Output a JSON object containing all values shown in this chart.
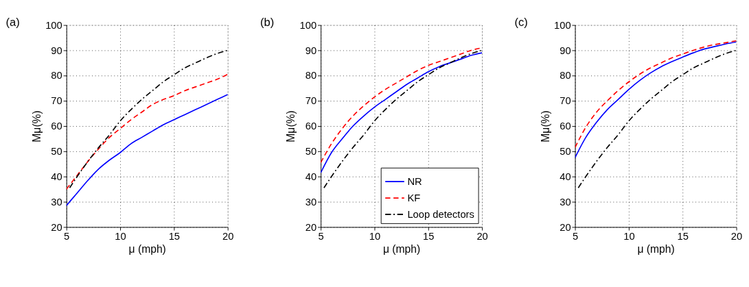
{
  "chart_data": [
    {
      "type": "line",
      "title": "(a)",
      "xlabel": "μ (mph)",
      "ylabel": "Mμ(%)",
      "xlim": [
        5,
        20
      ],
      "xticks": [
        5,
        10,
        15,
        20
      ],
      "ylim": [
        20,
        100
      ],
      "yticks": [
        20,
        30,
        40,
        50,
        60,
        70,
        80,
        90,
        100
      ],
      "grid": true,
      "series": [
        {
          "color": "#0000ff",
          "line_style": "solid",
          "x": [
            5,
            6,
            7,
            8,
            9,
            10,
            11,
            12,
            13,
            14,
            15,
            16,
            17,
            18,
            19,
            20
          ],
          "values": [
            28.5,
            33.5,
            38.5,
            43,
            46.5,
            49.5,
            53,
            55.5,
            58,
            60.5,
            62.5,
            64.5,
            66.5,
            68.5,
            70.5,
            72.5
          ]
        },
        {
          "color": "#ff0000",
          "line_style": "dashed",
          "x": [
            5,
            6,
            7,
            8,
            9,
            10,
            11,
            12,
            13,
            14,
            15,
            16,
            17,
            18,
            19,
            20
          ],
          "values": [
            35,
            40.5,
            46,
            51,
            55.5,
            59,
            62.5,
            65.5,
            68.5,
            70.5,
            72,
            74,
            75.5,
            77,
            78.5,
            80.5
          ]
        },
        {
          "color": "#000000",
          "line_style": "dashdot",
          "x": [
            5.3,
            6,
            7,
            8,
            9,
            10,
            11,
            12,
            13,
            14,
            15,
            16,
            17,
            18,
            19,
            20
          ],
          "values": [
            35.5,
            40,
            46,
            51.5,
            56.5,
            62,
            66.5,
            70.5,
            74,
            77.5,
            80.3,
            83,
            85,
            87,
            88.7,
            90
          ]
        }
      ]
    },
    {
      "type": "line",
      "title": "(b)",
      "xlabel": "μ (mph)",
      "ylabel": "Mμ(%)",
      "xlim": [
        5,
        20
      ],
      "xticks": [
        5,
        10,
        15,
        20
      ],
      "ylim": [
        20,
        100
      ],
      "yticks": [
        20,
        30,
        40,
        50,
        60,
        70,
        80,
        90,
        100
      ],
      "grid": true,
      "legend": "bottom right",
      "series": [
        {
          "name": "NR",
          "color": "#0000ff",
          "line_style": "solid",
          "x": [
            5,
            6,
            7,
            8,
            9,
            10,
            11,
            12,
            13,
            14,
            15,
            16,
            17,
            18,
            19,
            20
          ],
          "values": [
            41.5,
            49.5,
            55,
            60,
            64,
            67.5,
            70.5,
            73.5,
            76.5,
            79,
            81.5,
            83.5,
            85,
            86.5,
            88,
            89
          ]
        },
        {
          "name": "KF",
          "color": "#ff0000",
          "line_style": "dashed",
          "x": [
            5,
            6,
            7,
            8,
            9,
            10,
            11,
            12,
            13,
            14,
            15,
            16,
            17,
            18,
            19,
            20
          ],
          "values": [
            45.5,
            53,
            59,
            64,
            68,
            71.5,
            74.5,
            77,
            79.5,
            82,
            84,
            85.5,
            87,
            88.5,
            90,
            91
          ]
        },
        {
          "name": "Loop detectors",
          "color": "#000000",
          "line_style": "dashdot",
          "x": [
            5.3,
            6,
            7,
            8,
            9,
            10,
            11,
            12,
            13,
            14,
            15,
            16,
            17,
            18,
            19,
            20
          ],
          "values": [
            35.5,
            40,
            46,
            51.5,
            56.5,
            62,
            66.5,
            70.5,
            74,
            77.5,
            80.3,
            83,
            85,
            87,
            88.7,
            90
          ]
        }
      ]
    },
    {
      "type": "line",
      "title": "(c)",
      "xlabel": "μ (mph)",
      "ylabel": "Mμ(%)",
      "xlim": [
        5,
        20
      ],
      "xticks": [
        5,
        10,
        15,
        20
      ],
      "ylim": [
        20,
        100
      ],
      "yticks": [
        20,
        30,
        40,
        50,
        60,
        70,
        80,
        90,
        100
      ],
      "grid": true,
      "series": [
        {
          "color": "#0000ff",
          "line_style": "solid",
          "x": [
            5,
            6,
            7,
            8,
            9,
            10,
            11,
            12,
            13,
            14,
            15,
            16,
            17,
            18,
            19,
            20
          ],
          "values": [
            47.5,
            55.5,
            61.5,
            66.5,
            70.5,
            74.5,
            78,
            81,
            83.5,
            85.5,
            87.3,
            89,
            90.5,
            91.5,
            92.5,
            93.3
          ]
        },
        {
          "color": "#ff0000",
          "line_style": "dashed",
          "x": [
            5,
            6,
            7,
            8,
            9,
            10,
            11,
            12,
            13,
            14,
            15,
            16,
            17,
            18,
            19,
            20
          ],
          "values": [
            51.5,
            59.5,
            65.5,
            70,
            74,
            77.5,
            80.5,
            83,
            85,
            87,
            88.5,
            90,
            91.3,
            92.3,
            93,
            93.8
          ]
        },
        {
          "color": "#000000",
          "line_style": "dashdot",
          "x": [
            5.3,
            6,
            7,
            8,
            9,
            10,
            11,
            12,
            13,
            14,
            15,
            16,
            17,
            18,
            19,
            20
          ],
          "values": [
            35.5,
            40,
            46,
            51.5,
            56.5,
            62,
            66.5,
            70.5,
            74,
            77.5,
            80.3,
            83,
            85,
            87,
            88.7,
            90
          ]
        }
      ]
    }
  ]
}
